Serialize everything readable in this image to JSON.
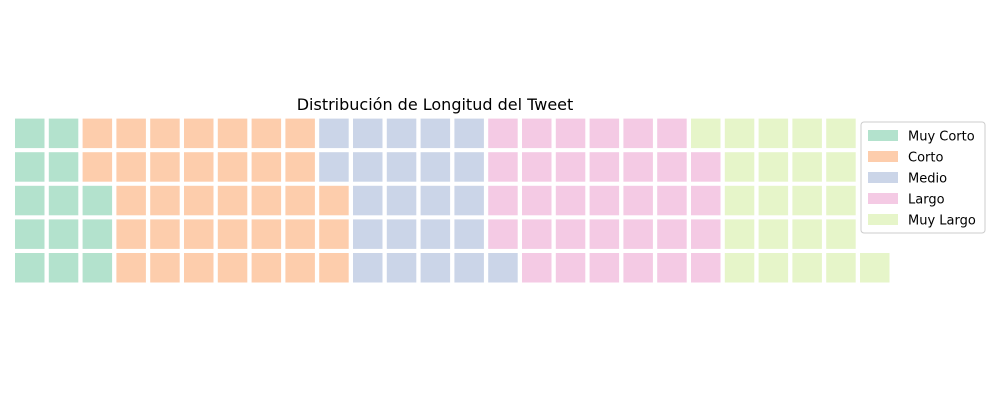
{
  "chart_data": {
    "type": "waffle",
    "title": "Distribución de Longitud del Tweet",
    "rows": 5,
    "legend_position": "right",
    "series": [
      {
        "name": "Muy Corto",
        "value": 13,
        "color": "#b3e2cd"
      },
      {
        "name": "Corto",
        "value": 35,
        "color": "#fdcdac"
      },
      {
        "name": "Medio",
        "value": 23,
        "color": "#cbd5e8"
      },
      {
        "name": "Largo",
        "value": 33,
        "color": "#f4cae4"
      },
      {
        "name": "Muy Largo",
        "value": 22,
        "color": "#e6f5c9"
      }
    ]
  }
}
